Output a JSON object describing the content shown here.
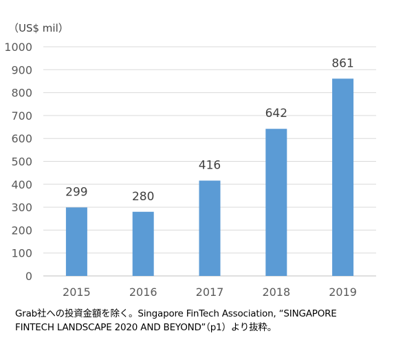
{
  "chart_data": {
    "type": "bar",
    "categories": [
      "2015",
      "2016",
      "2017",
      "2018",
      "2019"
    ],
    "values": [
      299,
      280,
      416,
      642,
      861
    ],
    "data_labels": [
      "299",
      "280",
      "416",
      "642",
      "861"
    ],
    "ylabel": "（US$ mil）",
    "xlabel": "",
    "title": "",
    "ylim": [
      0,
      1000
    ],
    "yticks": [
      "0",
      "100",
      "200",
      "300",
      "400",
      "500",
      "600",
      "700",
      "800",
      "900",
      "1000"
    ],
    "grid": true,
    "legend": "none",
    "bar_color": "#5B9BD5",
    "grid_color": "#D9D9D9"
  },
  "footnote": {
    "line1": "Grab社への投資金額を除く。Singapore FinTech Association, “SINGAPORE",
    "line2": "FINTECH LANDSCAPE 2020 AND BEYOND”（p1）より抜粋。"
  }
}
